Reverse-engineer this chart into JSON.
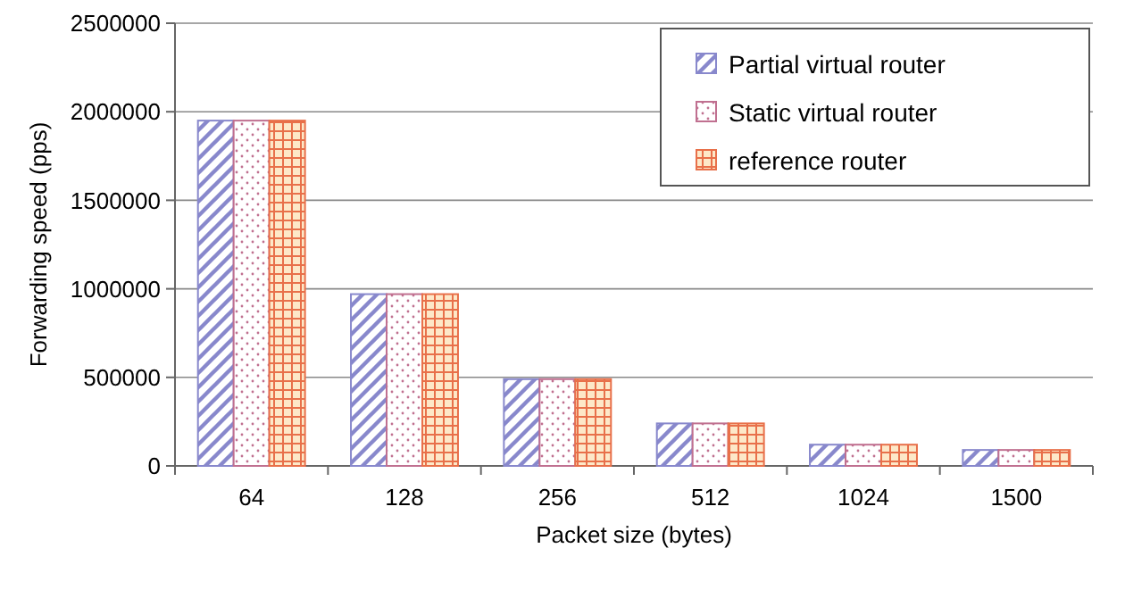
{
  "chart_data": {
    "type": "bar",
    "xlabel": "Packet size (bytes)",
    "ylabel": "Forwarding speed (pps)",
    "categories": [
      "64",
      "128",
      "256",
      "512",
      "1024",
      "1500"
    ],
    "series": [
      {
        "name": "Partial virtual router",
        "color": "#8888cc",
        "values": [
          1950000,
          970000,
          490000,
          240000,
          120000,
          90000
        ]
      },
      {
        "name": "Static virtual router",
        "color": "#c07090",
        "values": [
          1950000,
          970000,
          490000,
          240000,
          120000,
          90000
        ]
      },
      {
        "name": "reference router",
        "color": "#e8704a",
        "values": [
          1950000,
          970000,
          490000,
          240000,
          120000,
          90000
        ]
      }
    ],
    "ylim": [
      0,
      2500000
    ],
    "yticks": [
      0,
      500000,
      1000000,
      1500000,
      2000000,
      2500000
    ],
    "grid": "y",
    "legend": "top right"
  }
}
